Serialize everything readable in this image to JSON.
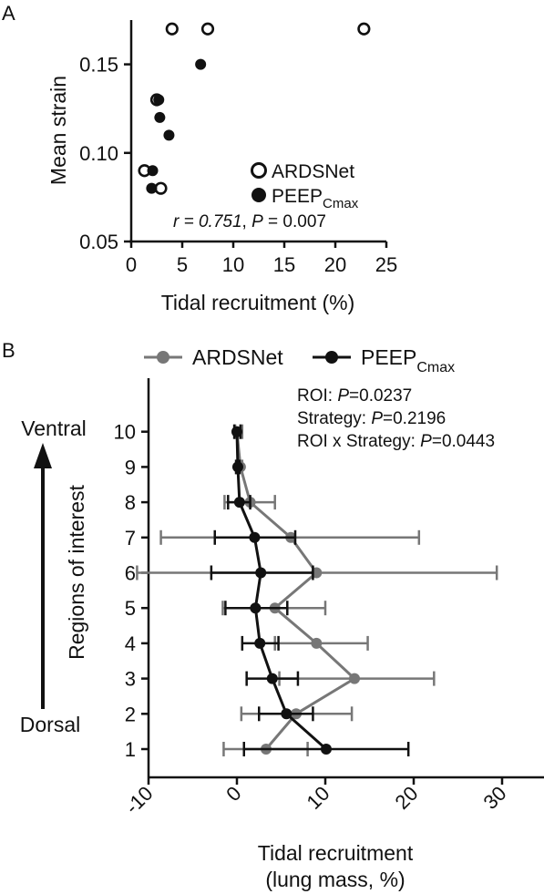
{
  "chart_data": [
    {
      "panel": "A",
      "type": "scatter",
      "xlabel": "Tidal recruitment (%)",
      "ylabel": "Mean strain",
      "xlim": [
        0,
        25
      ],
      "ylim": [
        0.05,
        0.175
      ],
      "xticks": [
        "0",
        "5",
        "10",
        "15",
        "20",
        "25"
      ],
      "yticks": [
        "0.05",
        "0.10",
        "0.15"
      ],
      "grid": false,
      "legend_position": "right",
      "series": [
        {
          "name": "ARDSNet",
          "marker": "open-circle",
          "points": [
            [
              4.0,
              0.17
            ],
            [
              7.5,
              0.17
            ],
            [
              22.8,
              0.17
            ],
            [
              2.5,
              0.13
            ],
            [
              1.3,
              0.09
            ],
            [
              2.9,
              0.08
            ]
          ]
        },
        {
          "name": "PEEP",
          "name_sub": "Cmax",
          "marker": "filled-circle",
          "points": [
            [
              6.8,
              0.15
            ],
            [
              2.7,
              0.13
            ],
            [
              2.8,
              0.12
            ],
            [
              3.7,
              0.11
            ],
            [
              2.1,
              0.09
            ],
            [
              2.0,
              0.08
            ]
          ]
        }
      ],
      "annotation": {
        "r_text": "r = 0.751",
        "sep": ", ",
        "p_label": "P",
        "p_text": " = 0.007"
      }
    },
    {
      "panel": "B",
      "type": "line",
      "xlabel_line1": "Tidal recruitment",
      "xlabel_line2": "(lung mass, %)",
      "ylabel": "Regions of interest",
      "xlim": [
        -12,
        35
      ],
      "ylim": [
        0.5,
        10.6
      ],
      "xticks": [
        "-10",
        "0",
        "10",
        "20",
        "30"
      ],
      "y": [
        1,
        2,
        3,
        4,
        5,
        6,
        7,
        8,
        9,
        10
      ],
      "legend_position": "top",
      "grid": false,
      "side_labels": {
        "top": "Ventral",
        "bottom": "Dorsal"
      },
      "series": [
        {
          "name": "ARDSNet",
          "color": "#777777",
          "x": [
            3.3,
            6.7,
            13.3,
            9.0,
            4.3,
            9.0,
            6.1,
            1.5,
            0.4,
            0.0
          ],
          "lo": [
            -1.5,
            0.5,
            4.8,
            4.3,
            -1.6,
            -11.3,
            -8.6,
            -1.4,
            0.0,
            -0.2
          ],
          "hi": [
            8.0,
            13.0,
            22.3,
            14.8,
            10.0,
            29.4,
            20.6,
            4.3,
            0.6,
            0.6
          ]
        },
        {
          "name": "PEEP",
          "name_sub": "Cmax",
          "color": "#111111",
          "x": [
            10.1,
            5.6,
            4.0,
            2.6,
            2.1,
            2.7,
            2.0,
            0.3,
            0.1,
            0.0
          ],
          "lo": [
            0.8,
            2.5,
            1.1,
            0.6,
            -1.3,
            -2.9,
            -2.5,
            -1.0,
            -0.1,
            -0.3
          ],
          "hi": [
            19.4,
            8.6,
            6.9,
            4.7,
            5.7,
            8.6,
            6.6,
            1.5,
            0.3,
            0.4
          ]
        }
      ],
      "stats": [
        {
          "label": "ROI: ",
          "p_label": "P",
          "value": "=0.0237"
        },
        {
          "label": "Strategy: ",
          "p_label": "P",
          "value": "=0.2196"
        },
        {
          "label": "ROI x Strategy: ",
          "p_label": "P",
          "value": "=0.0443"
        }
      ]
    }
  ]
}
